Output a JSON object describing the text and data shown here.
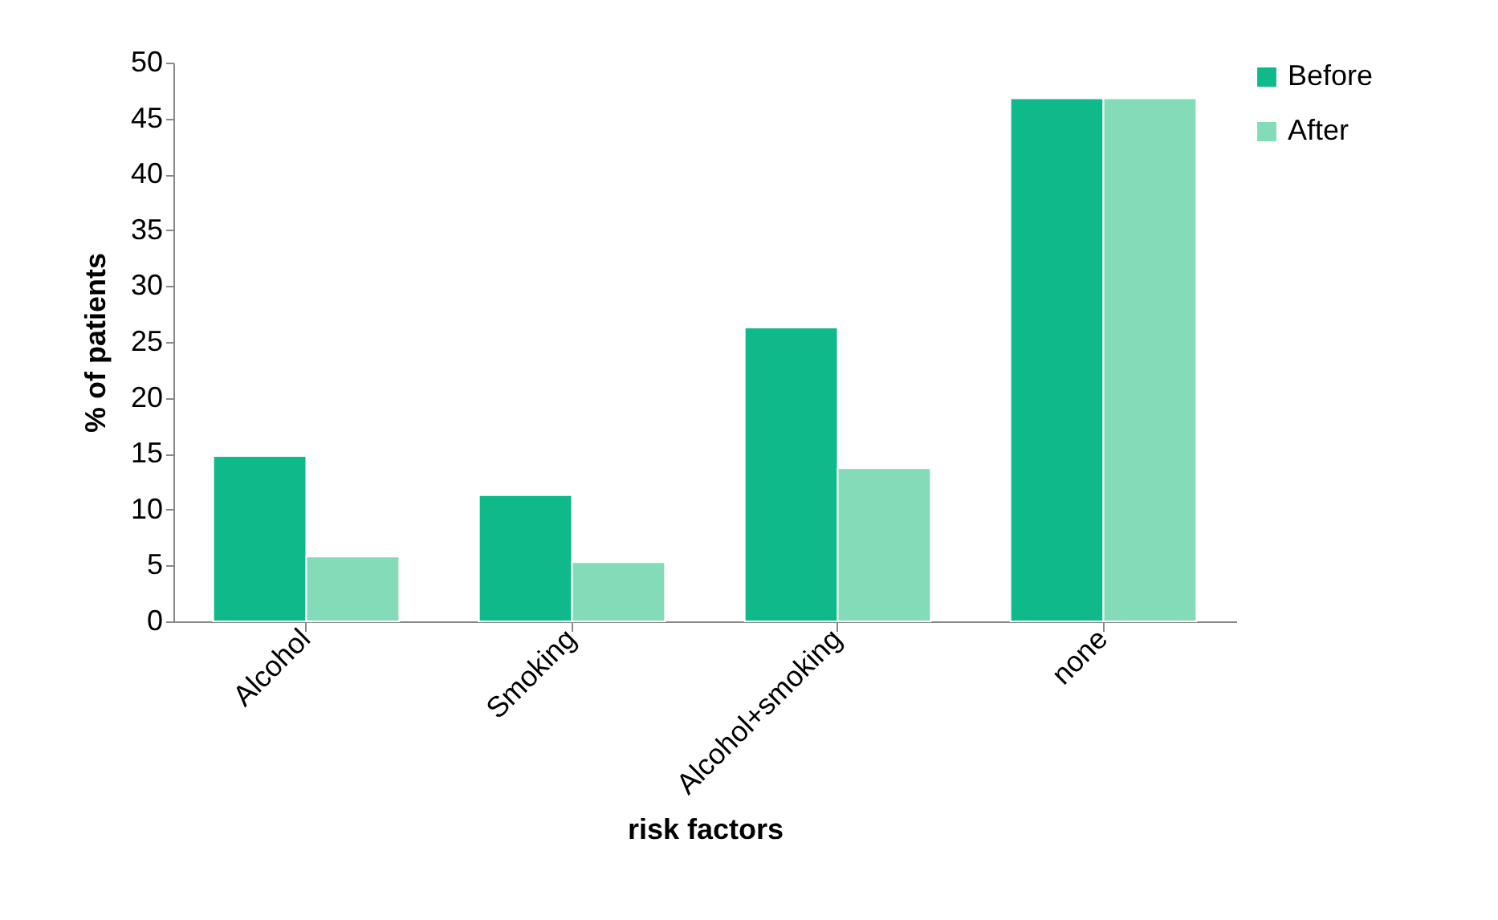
{
  "chart_data": {
    "type": "bar",
    "xlabel": "risk factors",
    "ylabel": "% of patients",
    "categories": [
      "Alcohol",
      "Smoking",
      "Alcohol+smoking",
      "none"
    ],
    "series": [
      {
        "name": "Before",
        "color": "#10b98a",
        "values": [
          14.8,
          11.3,
          26.3,
          46.8
        ]
      },
      {
        "name": "After",
        "color": "#84dbb8",
        "values": [
          5.8,
          5.3,
          13.7,
          46.8
        ]
      }
    ],
    "ylim": [
      0,
      50
    ],
    "yticks": [
      0,
      5,
      10,
      15,
      20,
      25,
      30,
      35,
      40,
      45,
      50
    ],
    "legend": "right"
  }
}
